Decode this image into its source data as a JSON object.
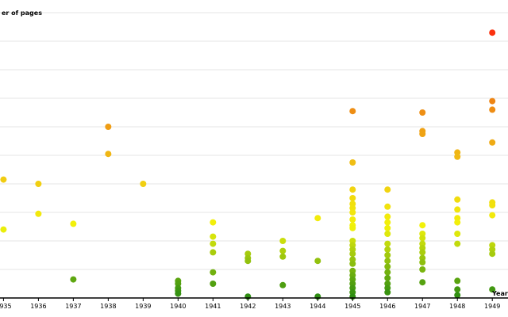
{
  "chart_data": {
    "type": "scatter",
    "title": "",
    "ylabel": "er of pages",
    "xlabel": "Year",
    "xlim": [
      1934.9,
      1949.45
    ],
    "ylim": [
      0,
      200
    ],
    "grid": true,
    "x_ticks": [
      1935,
      1936,
      1937,
      1938,
      1939,
      1940,
      1941,
      1942,
      1943,
      1944,
      1945,
      1946,
      1947,
      1948,
      1949
    ],
    "colors": {
      "low": "#2a8c12",
      "mid": "#f2f20a",
      "high": "#ff1a0d",
      "axis": "#000000",
      "grid": "#e6e6e6"
    },
    "points": [
      {
        "x": 1935,
        "y": 83
      },
      {
        "x": 1935,
        "y": 48
      },
      {
        "x": 1936,
        "y": 80
      },
      {
        "x": 1936,
        "y": 59
      },
      {
        "x": 1937,
        "y": 52
      },
      {
        "x": 1937,
        "y": 13
      },
      {
        "x": 1938,
        "y": 120
      },
      {
        "x": 1938,
        "y": 101
      },
      {
        "x": 1939,
        "y": 80
      },
      {
        "x": 1940,
        "y": 12
      },
      {
        "x": 1940,
        "y": 10
      },
      {
        "x": 1940,
        "y": 7
      },
      {
        "x": 1940,
        "y": 5
      },
      {
        "x": 1940,
        "y": 3
      },
      {
        "x": 1941,
        "y": 53
      },
      {
        "x": 1941,
        "y": 43
      },
      {
        "x": 1941,
        "y": 38
      },
      {
        "x": 1941,
        "y": 32
      },
      {
        "x": 1941,
        "y": 18
      },
      {
        "x": 1941,
        "y": 10
      },
      {
        "x": 1942,
        "y": 31
      },
      {
        "x": 1942,
        "y": 28
      },
      {
        "x": 1942,
        "y": 26
      },
      {
        "x": 1942,
        "y": 1
      },
      {
        "x": 1943,
        "y": 40
      },
      {
        "x": 1943,
        "y": 33
      },
      {
        "x": 1943,
        "y": 29
      },
      {
        "x": 1943,
        "y": 9
      },
      {
        "x": 1944,
        "y": 56
      },
      {
        "x": 1944,
        "y": 26
      },
      {
        "x": 1944,
        "y": 1
      },
      {
        "x": 1945,
        "y": 131
      },
      {
        "x": 1945,
        "y": 95
      },
      {
        "x": 1945,
        "y": 76
      },
      {
        "x": 1945,
        "y": 70
      },
      {
        "x": 1945,
        "y": 66
      },
      {
        "x": 1945,
        "y": 63
      },
      {
        "x": 1945,
        "y": 60
      },
      {
        "x": 1945,
        "y": 55
      },
      {
        "x": 1945,
        "y": 51
      },
      {
        "x": 1945,
        "y": 49
      },
      {
        "x": 1945,
        "y": 40
      },
      {
        "x": 1945,
        "y": 37
      },
      {
        "x": 1945,
        "y": 34
      },
      {
        "x": 1945,
        "y": 31
      },
      {
        "x": 1945,
        "y": 27
      },
      {
        "x": 1945,
        "y": 24
      },
      {
        "x": 1945,
        "y": 19
      },
      {
        "x": 1945,
        "y": 16
      },
      {
        "x": 1945,
        "y": 13
      },
      {
        "x": 1945,
        "y": 10
      },
      {
        "x": 1945,
        "y": 7
      },
      {
        "x": 1945,
        "y": 4
      },
      {
        "x": 1945,
        "y": 1
      },
      {
        "x": 1946,
        "y": 76
      },
      {
        "x": 1946,
        "y": 64
      },
      {
        "x": 1946,
        "y": 57
      },
      {
        "x": 1946,
        "y": 53
      },
      {
        "x": 1946,
        "y": 49
      },
      {
        "x": 1946,
        "y": 45
      },
      {
        "x": 1946,
        "y": 38
      },
      {
        "x": 1946,
        "y": 34
      },
      {
        "x": 1946,
        "y": 30
      },
      {
        "x": 1946,
        "y": 26
      },
      {
        "x": 1946,
        "y": 22
      },
      {
        "x": 1946,
        "y": 18
      },
      {
        "x": 1946,
        "y": 14
      },
      {
        "x": 1946,
        "y": 10
      },
      {
        "x": 1946,
        "y": 7
      },
      {
        "x": 1946,
        "y": 4
      },
      {
        "x": 1947,
        "y": 130
      },
      {
        "x": 1947,
        "y": 117
      },
      {
        "x": 1947,
        "y": 115
      },
      {
        "x": 1947,
        "y": 51
      },
      {
        "x": 1947,
        "y": 45
      },
      {
        "x": 1947,
        "y": 42
      },
      {
        "x": 1947,
        "y": 38
      },
      {
        "x": 1947,
        "y": 35
      },
      {
        "x": 1947,
        "y": 32
      },
      {
        "x": 1947,
        "y": 28
      },
      {
        "x": 1947,
        "y": 25
      },
      {
        "x": 1947,
        "y": 20
      },
      {
        "x": 1947,
        "y": 11
      },
      {
        "x": 1948,
        "y": 102
      },
      {
        "x": 1948,
        "y": 99
      },
      {
        "x": 1948,
        "y": 69
      },
      {
        "x": 1948,
        "y": 62
      },
      {
        "x": 1948,
        "y": 56
      },
      {
        "x": 1948,
        "y": 53
      },
      {
        "x": 1948,
        "y": 45
      },
      {
        "x": 1948,
        "y": 38
      },
      {
        "x": 1948,
        "y": 12
      },
      {
        "x": 1948,
        "y": 6
      },
      {
        "x": 1948,
        "y": 2
      },
      {
        "x": 1949,
        "y": 186
      },
      {
        "x": 1949,
        "y": 138
      },
      {
        "x": 1949,
        "y": 132
      },
      {
        "x": 1949,
        "y": 109
      },
      {
        "x": 1949,
        "y": 67
      },
      {
        "x": 1949,
        "y": 65
      },
      {
        "x": 1949,
        "y": 58
      },
      {
        "x": 1949,
        "y": 37
      },
      {
        "x": 1949,
        "y": 34
      },
      {
        "x": 1949,
        "y": 31
      },
      {
        "x": 1949,
        "y": 6
      }
    ]
  }
}
